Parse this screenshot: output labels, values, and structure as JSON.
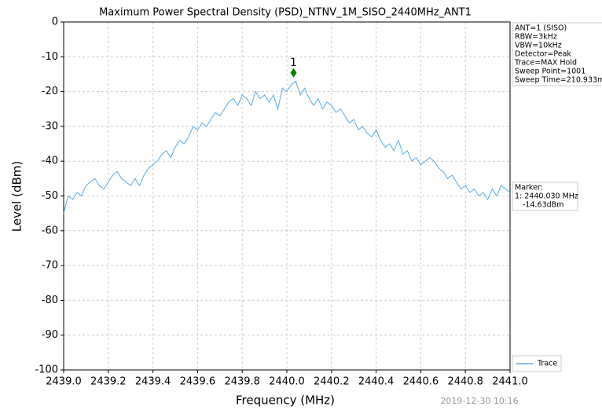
{
  "chart_data": {
    "type": "line",
    "title": "Maximum Power Spectral Density (PSD)_NTNV_1M_SISO_2440MHz_ANT1",
    "xlabel": "Frequency (MHz)",
    "ylabel": "Level (dBm)",
    "xlim": [
      2439,
      2441
    ],
    "ylim": [
      -100,
      0
    ],
    "xticks": [
      {
        "value": 2439,
        "label": "2439.0"
      },
      2439.2,
      2439.4,
      2439.6,
      2439.8,
      {
        "value": 2440,
        "label": "2440.0"
      },
      2440.2,
      2440.4,
      2440.6,
      2440.8,
      {
        "value": 2441,
        "label": "2441.0"
      }
    ],
    "yticks": [
      0,
      -10,
      -20,
      -30,
      -40,
      -50,
      -60,
      -70,
      -80,
      -90,
      -100
    ],
    "grid": true,
    "x": [
      2439.0,
      2439.02,
      2439.04,
      2439.06,
      2439.08,
      2439.1,
      2439.12,
      2439.14,
      2439.16,
      2439.18,
      2439.2,
      2439.22,
      2439.24,
      2439.26,
      2439.28,
      2439.3,
      2439.32,
      2439.34,
      2439.36,
      2439.38,
      2439.4,
      2439.42,
      2439.44,
      2439.46,
      2439.48,
      2439.5,
      2439.52,
      2439.54,
      2439.56,
      2439.58,
      2439.6,
      2439.62,
      2439.64,
      2439.66,
      2439.68,
      2439.7,
      2439.72,
      2439.74,
      2439.76,
      2439.78,
      2439.8,
      2439.82,
      2439.84,
      2439.86,
      2439.88,
      2439.9,
      2439.92,
      2439.94,
      2439.96,
      2439.98,
      2440.0,
      2440.02,
      2440.04,
      2440.06,
      2440.08,
      2440.1,
      2440.12,
      2440.14,
      2440.16,
      2440.18,
      2440.2,
      2440.22,
      2440.24,
      2440.26,
      2440.28,
      2440.3,
      2440.32,
      2440.34,
      2440.36,
      2440.38,
      2440.4,
      2440.42,
      2440.44,
      2440.46,
      2440.48,
      2440.5,
      2440.52,
      2440.54,
      2440.56,
      2440.58,
      2440.6,
      2440.62,
      2440.64,
      2440.66,
      2440.68,
      2440.7,
      2440.72,
      2440.74,
      2440.76,
      2440.78,
      2440.8,
      2440.82,
      2440.84,
      2440.86,
      2440.88,
      2440.9,
      2440.92,
      2440.94,
      2440.96,
      2440.98,
      2441.0
    ],
    "series": [
      {
        "name": "Trace",
        "color": "#5aaae6",
        "values": [
          -55,
          -50,
          -51,
          -49,
          -50,
          -47,
          -46,
          -45,
          -47,
          -48,
          -46,
          -44,
          -43,
          -45,
          -46,
          -47,
          -45,
          -47,
          -44,
          -42,
          -41,
          -40,
          -38,
          -37,
          -39,
          -36,
          -34,
          -35,
          -33,
          -30,
          -31,
          -29,
          -30,
          -28,
          -26,
          -27,
          -25,
          -23,
          -22,
          -24,
          -21,
          -22,
          -24,
          -20,
          -22,
          -21,
          -23,
          -21,
          -25,
          -19,
          -20,
          -18,
          -17,
          -21,
          -19,
          -22,
          -24,
          -22,
          -25,
          -23,
          -24,
          -26,
          -25,
          -27,
          -29,
          -28,
          -31,
          -30,
          -32,
          -33,
          -31,
          -34,
          -36,
          -35,
          -37,
          -34,
          -38,
          -37,
          -40,
          -39,
          -41,
          -40,
          -39,
          -40,
          -42,
          -43,
          -45,
          -44,
          -46,
          -48,
          -47,
          -49,
          -48,
          -50,
          -49,
          -51,
          -48,
          -50,
          -47,
          -48,
          -49
        ]
      }
    ],
    "marker": {
      "label": "1",
      "x": 2440.03,
      "y": -14.63,
      "color": "#008000"
    },
    "info": [
      "ANT=1 (SISO)",
      "RBW=3kHz",
      "VBW=10kHz",
      "Detector=Peak",
      "Trace=MAX Hold",
      "Sweep Point=1001",
      "Sweep Time=210.933m"
    ],
    "marker_info": [
      "Marker:",
      "1: 2440.030 MHz",
      "-14.63dBm"
    ],
    "timestamp": "2019-12-30 10:16"
  }
}
